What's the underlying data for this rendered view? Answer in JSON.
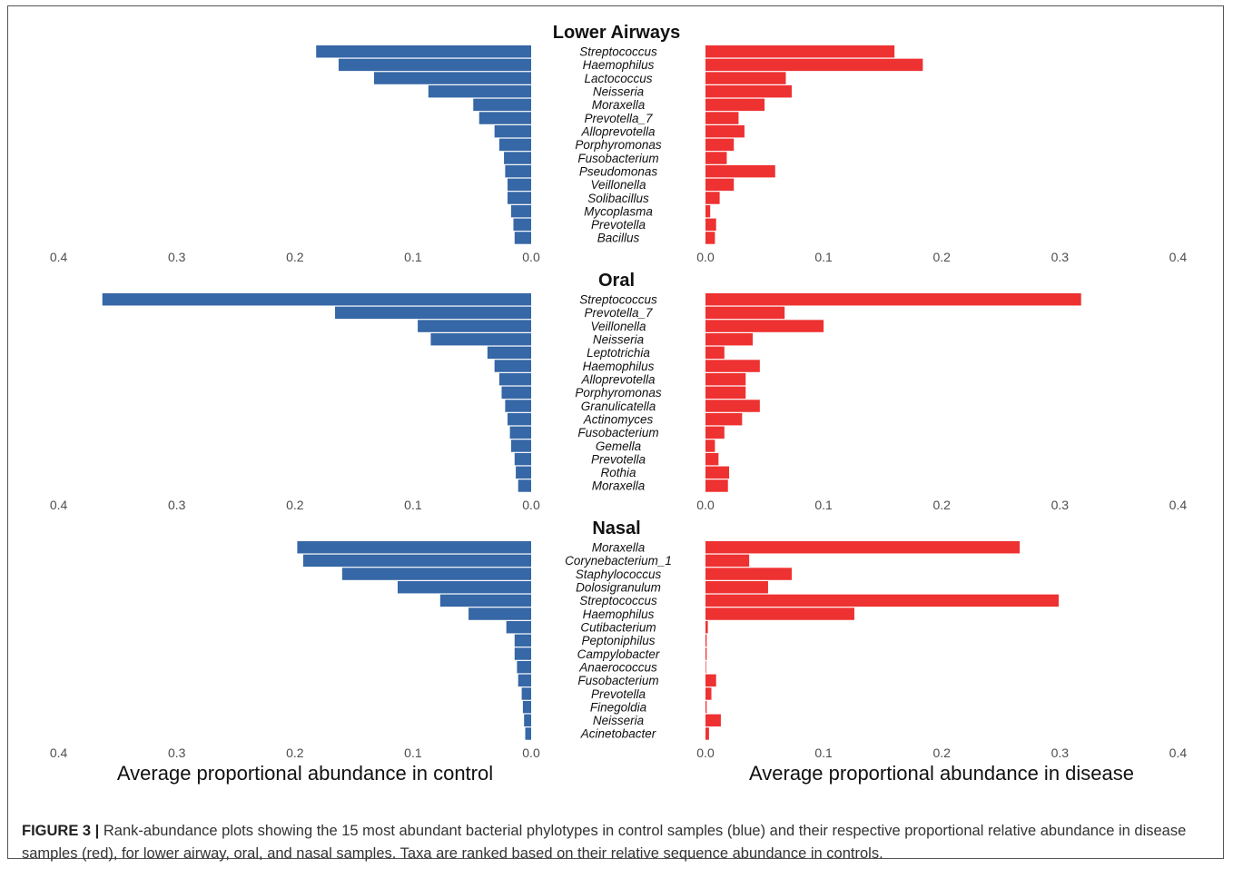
{
  "colors": {
    "control": "#3667a6",
    "disease": "#ee3131",
    "axis_text": "#4d4d4d"
  },
  "chart_data": {
    "type": "bar",
    "orientation": "horizontal-back-to-back",
    "xlabel_left": "Average proportional abundance in control",
    "xlabel_right": "Average proportional abundance in disease",
    "xlim": [
      0,
      0.4
    ],
    "ticks": [
      "0.4",
      "0.3",
      "0.2",
      "0.1",
      "0.0"
    ],
    "ticks_right": [
      "0.0",
      "0.1",
      "0.2",
      "0.3",
      "0.4"
    ],
    "panels": [
      {
        "title": "Lower Airways",
        "categories": [
          "Streptococcus",
          "Haemophilus",
          "Lactococcus",
          "Neisseria",
          "Moraxella",
          "Prevotella_7",
          "Alloprevotella",
          "Porphyromonas",
          "Fusobacterium",
          "Pseudomonas",
          "Veillonella",
          "Solibacillus",
          "Mycoplasma",
          "Prevotella",
          "Bacillus"
        ],
        "series": [
          {
            "name": "control",
            "values": [
              0.182,
              0.163,
              0.133,
              0.087,
              0.049,
              0.044,
              0.031,
              0.027,
              0.023,
              0.022,
              0.02,
              0.02,
              0.017,
              0.015,
              0.014
            ]
          },
          {
            "name": "disease",
            "values": [
              0.16,
              0.184,
              0.068,
              0.073,
              0.05,
              0.028,
              0.033,
              0.024,
              0.018,
              0.059,
              0.024,
              0.012,
              0.004,
              0.009,
              0.008
            ]
          }
        ]
      },
      {
        "title": "Oral",
        "categories": [
          "Streptococcus",
          "Prevotella_7",
          "Veillonella",
          "Neisseria",
          "Leptotrichia",
          "Haemophilus",
          "Alloprevotella",
          "Porphyromonas",
          "Granulicatella",
          "Actinomyces",
          "Fusobacterium",
          "Gemella",
          "Prevotella",
          "Rothia",
          "Moraxella"
        ],
        "series": [
          {
            "name": "control",
            "values": [
              0.363,
              0.166,
              0.096,
              0.085,
              0.037,
              0.031,
              0.027,
              0.025,
              0.022,
              0.02,
              0.018,
              0.017,
              0.014,
              0.013,
              0.011
            ]
          },
          {
            "name": "disease",
            "values": [
              0.318,
              0.067,
              0.1,
              0.04,
              0.016,
              0.046,
              0.034,
              0.034,
              0.046,
              0.031,
              0.016,
              0.008,
              0.011,
              0.02,
              0.019
            ]
          }
        ]
      },
      {
        "title": "Nasal",
        "categories": [
          "Moraxella",
          "Corynebacterium_1",
          "Staphylococcus",
          "Dolosigranulum",
          "Streptococcus",
          "Haemophilus",
          "Cutibacterium",
          "Peptoniphilus",
          "Campylobacter",
          "Anaerococcus",
          "Fusobacterium",
          "Prevotella",
          "Finegoldia",
          "Neisseria",
          "Acinetobacter"
        ],
        "series": [
          {
            "name": "control",
            "values": [
              0.198,
              0.193,
              0.16,
              0.113,
              0.077,
              0.053,
              0.021,
              0.014,
              0.014,
              0.012,
              0.011,
              0.008,
              0.007,
              0.006,
              0.005
            ]
          },
          {
            "name": "disease",
            "values": [
              0.266,
              0.037,
              0.073,
              0.053,
              0.299,
              0.126,
              0.002,
              0.001,
              0.001,
              0.0005,
              0.009,
              0.005,
              0.001,
              0.013,
              0.003
            ]
          }
        ]
      }
    ]
  },
  "caption": {
    "label": "FIGURE 3 |",
    "text": " Rank-abundance plots showing the 15 most abundant bacterial phylotypes in control samples (blue) and their respective proportional relative abundance in disease samples (red), for lower airway, oral, and nasal samples. Taxa are ranked based on their relative sequence abundance in controls."
  }
}
